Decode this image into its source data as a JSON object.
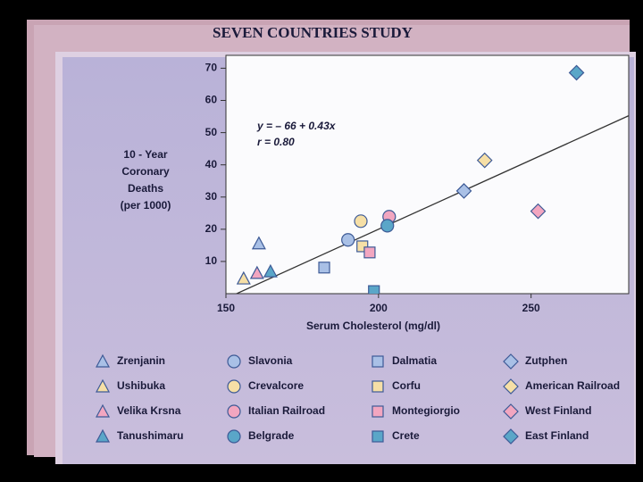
{
  "chart_data": {
    "type": "scatter",
    "title": "SEVEN COUNTRIES STUDY",
    "xlabel": "Serum Cholesterol (mg/dl)",
    "ylabel": [
      "10 - Year",
      "Coronary",
      "Deaths",
      "(per 1000)"
    ],
    "annotations": [
      "y = – 66 + 0.43x",
      "r = 0.80"
    ],
    "fit": {
      "intercept": -66,
      "slope": 0.43
    },
    "xlim": [
      150,
      282
    ],
    "xticks": [
      150,
      200,
      250
    ],
    "ylim": [
      0,
      74
    ],
    "yticks": [
      10,
      20,
      30,
      40,
      50,
      60,
      70
    ],
    "series": [
      {
        "name": "Zrenjanin",
        "marker": "triangle",
        "color": "#a9c0e6",
        "x": [
          160.8
        ],
        "values": [
          15.6
        ]
      },
      {
        "name": "Ushibuka",
        "marker": "triangle",
        "color": "#f6dfa6",
        "x": [
          155.8
        ],
        "values": [
          4.7
        ]
      },
      {
        "name": "Velika Krsna",
        "marker": "triangle",
        "color": "#f2a6c0",
        "x": [
          160.2
        ],
        "values": [
          6.4
        ]
      },
      {
        "name": "Tanushimaru",
        "marker": "triangle",
        "color": "#5aa6c8",
        "x": [
          164.6
        ],
        "values": [
          6.9
        ]
      },
      {
        "name": "Slavonia",
        "marker": "circle",
        "color": "#a9c0e6",
        "x": [
          190
        ],
        "values": [
          16.7
        ]
      },
      {
        "name": "Crevalcore",
        "marker": "circle",
        "color": "#f6dfa6",
        "x": [
          194.2
        ],
        "values": [
          22.5
        ]
      },
      {
        "name": "Italian Railroad",
        "marker": "circle",
        "color": "#f2a6c0",
        "x": [
          203.5
        ],
        "values": [
          23.9
        ]
      },
      {
        "name": "Belgrade",
        "marker": "circle",
        "color": "#5aa6c8",
        "x": [
          202.9
        ],
        "values": [
          21.1
        ]
      },
      {
        "name": "Dalmatia",
        "marker": "square",
        "color": "#a9c0e6",
        "x": [
          182.2
        ],
        "values": [
          8.1
        ]
      },
      {
        "name": "Corfu",
        "marker": "square",
        "color": "#f6dfa6",
        "x": [
          194.7
        ],
        "values": [
          14.7
        ]
      },
      {
        "name": "Montegiorgio",
        "marker": "square",
        "color": "#f2a6c0",
        "x": [
          197.1
        ],
        "values": [
          12.8
        ]
      },
      {
        "name": "Crete",
        "marker": "square",
        "color": "#5aa6c8",
        "x": [
          198.5
        ],
        "values": [
          0.8
        ]
      },
      {
        "name": "Zutphen",
        "marker": "diamond",
        "color": "#a9c0e6",
        "x": [
          228
        ],
        "values": [
          31.9
        ]
      },
      {
        "name": "American Railroad",
        "marker": "diamond",
        "color": "#f6dfa6",
        "x": [
          234.8
        ],
        "values": [
          41.4
        ]
      },
      {
        "name": "West Finland",
        "marker": "diamond",
        "color": "#f2a6c0",
        "x": [
          252.3
        ],
        "values": [
          25.6
        ]
      },
      {
        "name": "East Finland",
        "marker": "diamond",
        "color": "#5aa6c8",
        "x": [
          264.9
        ],
        "values": [
          68.6
        ]
      }
    ]
  }
}
